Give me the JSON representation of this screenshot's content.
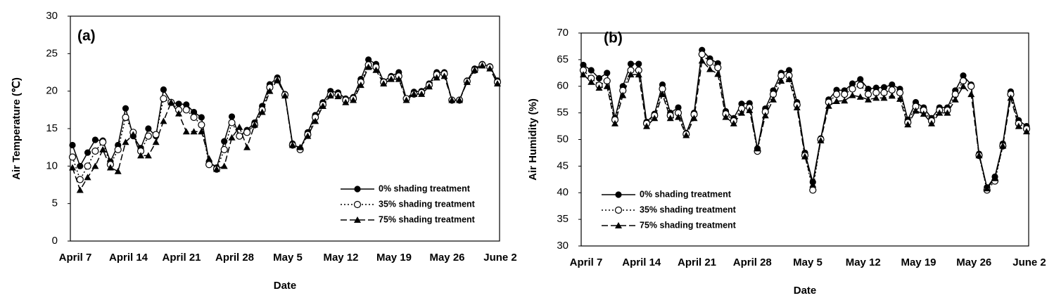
{
  "chart_data": [
    {
      "type": "line",
      "title": "(a)",
      "x_label": "Date",
      "y_label": "Air Temperature (℃)",
      "categories": [
        "April 7",
        null,
        null,
        null,
        null,
        null,
        null,
        "April 14",
        null,
        null,
        null,
        null,
        null,
        null,
        "April 21",
        null,
        null,
        null,
        null,
        null,
        null,
        "April 28",
        null,
        null,
        null,
        null,
        null,
        null,
        "May 5",
        null,
        null,
        null,
        null,
        null,
        null,
        "May 12",
        null,
        null,
        null,
        null,
        null,
        null,
        "May 19",
        null,
        null,
        null,
        null,
        null,
        null,
        "May 26",
        null,
        null,
        null,
        null,
        null,
        null,
        "June 2"
      ],
      "ylim": [
        0,
        30
      ],
      "yticks": [
        0,
        5,
        10,
        15,
        20,
        25,
        30
      ],
      "legend": "lower right",
      "series": [
        {
          "name": "0% shading treatment",
          "color": "#000000",
          "dash": "solid",
          "marker": "filled-circle",
          "values": [
            12.8,
            10,
            11.8,
            13.5,
            13.4,
            10.6,
            12.8,
            17.7,
            14,
            12.4,
            15,
            14,
            20.2,
            18.5,
            18.3,
            18.2,
            17.2,
            16.5,
            10.5,
            9.8,
            13.3,
            16.6,
            14,
            14.8,
            15.8,
            18,
            20.9,
            21.8,
            19.6,
            13,
            12.3,
            14.5,
            16.8,
            18.5,
            20,
            19.8,
            19,
            19.2,
            21.6,
            24.2,
            23.6,
            21.3,
            22,
            22.5,
            19,
            19.9,
            20,
            21,
            22.5,
            22.5,
            18.8,
            18.8,
            21.4,
            23,
            23.6,
            23.3,
            21.4
          ]
        },
        {
          "name": "35% shading treatment",
          "color": "#000000",
          "dash": "dotted",
          "marker": "open-circle",
          "values": [
            11.2,
            8.2,
            10,
            12,
            13.2,
            10.2,
            12.2,
            16.5,
            14.5,
            12,
            14,
            14.2,
            19,
            18.5,
            17.5,
            17.5,
            16.5,
            15.5,
            10.2,
            9.6,
            12.2,
            15.8,
            14,
            14.5,
            15.5,
            17.5,
            20.5,
            21.5,
            19.5,
            12.8,
            12.2,
            14.2,
            16.5,
            18.2,
            19.5,
            19.5,
            18.8,
            19,
            21.2,
            23.5,
            23.2,
            21.2,
            21.8,
            22,
            19,
            19.6,
            19.8,
            20.8,
            22.2,
            22.3,
            18.8,
            18.8,
            21.3,
            22.8,
            23.5,
            23.2,
            21.2
          ]
        },
        {
          "name": "75% shading treatment",
          "color": "#000000",
          "dash": "dashed",
          "marker": "triangle",
          "values": [
            9.8,
            6.8,
            8.5,
            10,
            12.2,
            9.8,
            9.3,
            13.2,
            14.2,
            11.4,
            11.4,
            13.2,
            16,
            18.5,
            17,
            14.6,
            14.6,
            14.6,
            11,
            9.6,
            10,
            13.8,
            15.2,
            12.5,
            15.5,
            17.2,
            20,
            21.5,
            19.4,
            12.8,
            12.5,
            14,
            16,
            18,
            19.4,
            19.3,
            18.5,
            18.8,
            20.8,
            23.2,
            22.8,
            21,
            21.6,
            21.6,
            18.8,
            19.6,
            19.6,
            20.6,
            21.8,
            22,
            18.8,
            18.8,
            21.2,
            22.8,
            23.4,
            23,
            21
          ]
        }
      ]
    },
    {
      "type": "line",
      "title": "(b)",
      "x_label": "Date",
      "y_label": "Air Humidity (%)",
      "categories": [
        "April 7",
        null,
        null,
        null,
        null,
        null,
        null,
        "April 14",
        null,
        null,
        null,
        null,
        null,
        null,
        "April 21",
        null,
        null,
        null,
        null,
        null,
        null,
        "April 28",
        null,
        null,
        null,
        null,
        null,
        null,
        "May 5",
        null,
        null,
        null,
        null,
        null,
        null,
        "May 12",
        null,
        null,
        null,
        null,
        null,
        null,
        "May 19",
        null,
        null,
        null,
        null,
        null,
        null,
        "May 26",
        null,
        null,
        null,
        null,
        null,
        null,
        "June 2"
      ],
      "ylim": [
        30,
        70
      ],
      "yticks": [
        30,
        35,
        40,
        45,
        50,
        55,
        60,
        65,
        70
      ],
      "legend": "lower left",
      "series": [
        {
          "name": "0% shading treatment",
          "color": "#000000",
          "dash": "solid",
          "marker": "filled-circle",
          "values": [
            64,
            63,
            61.5,
            62.5,
            54,
            60,
            64.2,
            64.2,
            53.3,
            54.8,
            60.3,
            55,
            56,
            51.2,
            55,
            66.8,
            65.2,
            64.3,
            55.3,
            54,
            56.7,
            56.8,
            48.3,
            55.8,
            59.2,
            62.5,
            63,
            57,
            47.5,
            42,
            50.2,
            57.5,
            59.3,
            59.2,
            60.5,
            61.3,
            59.5,
            59.7,
            59.8,
            60.3,
            59.5,
            53.7,
            57,
            56,
            54,
            56,
            56,
            59.2,
            62,
            60.3,
            47.3,
            41,
            43,
            49.2,
            59,
            53.6,
            52.5
          ]
        },
        {
          "name": "35% shading treatment",
          "color": "#000000",
          "dash": "dotted",
          "marker": "open-circle",
          "values": [
            63,
            61.5,
            60.2,
            61,
            53.7,
            59.2,
            63,
            63,
            53,
            54.5,
            59.5,
            54.5,
            55,
            51,
            54.7,
            66,
            64.5,
            63.5,
            54.8,
            53.5,
            55.8,
            56,
            47.8,
            55.2,
            58.5,
            62,
            62,
            56.5,
            47,
            40.5,
            50,
            57,
            58.5,
            58.5,
            59.5,
            60.2,
            58.5,
            58.8,
            58.8,
            59.3,
            58.8,
            53.2,
            56.2,
            55.5,
            53.5,
            55.5,
            55.5,
            58.5,
            61,
            60,
            47,
            40.5,
            42.2,
            48.8,
            58.5,
            53,
            52
          ]
        },
        {
          "name": "75% shading treatment",
          "color": "#000000",
          "dash": "dashed",
          "marker": "triangle",
          "values": [
            62.2,
            60.8,
            59.7,
            60,
            53,
            58.3,
            62.2,
            62.2,
            52.5,
            54,
            58.5,
            54,
            54.2,
            50.8,
            54,
            64.8,
            63.2,
            62.3,
            54.2,
            53,
            55,
            55.5,
            48.3,
            54.5,
            57.5,
            61,
            61.3,
            56,
            46.8,
            41.5,
            49.8,
            56.3,
            57.2,
            57.3,
            58.3,
            58,
            57.5,
            57.8,
            57.8,
            58.2,
            57.6,
            52.8,
            55.4,
            54.8,
            53,
            55,
            55,
            57.5,
            60,
            58.5,
            47,
            40.8,
            42.7,
            48.8,
            57.8,
            52.5,
            51.5
          ]
        }
      ]
    }
  ]
}
